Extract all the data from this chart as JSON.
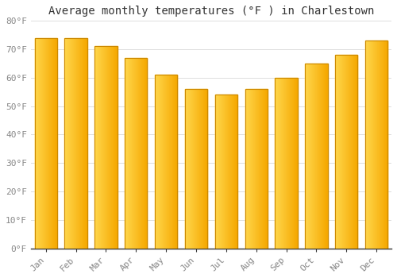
{
  "title": "Average monthly temperatures (°F ) in Charlestown",
  "months": [
    "Jan",
    "Feb",
    "Mar",
    "Apr",
    "May",
    "Jun",
    "Jul",
    "Aug",
    "Sep",
    "Oct",
    "Nov",
    "Dec"
  ],
  "values": [
    74,
    74,
    71,
    67,
    61,
    56,
    54,
    56,
    60,
    65,
    68,
    73
  ],
  "bar_color_dark": "#F5A800",
  "bar_color_light": "#FFD84D",
  "bar_edge_color": "#CC8800",
  "ylim": [
    0,
    80
  ],
  "ytick_step": 10,
  "background_color": "#FFFFFF",
  "plot_bg_color": "#FFFFFF",
  "grid_color": "#DDDDDD",
  "title_fontsize": 10,
  "tick_fontsize": 8,
  "font_family": "monospace",
  "tick_color": "#888888",
  "spine_color": "#333333"
}
